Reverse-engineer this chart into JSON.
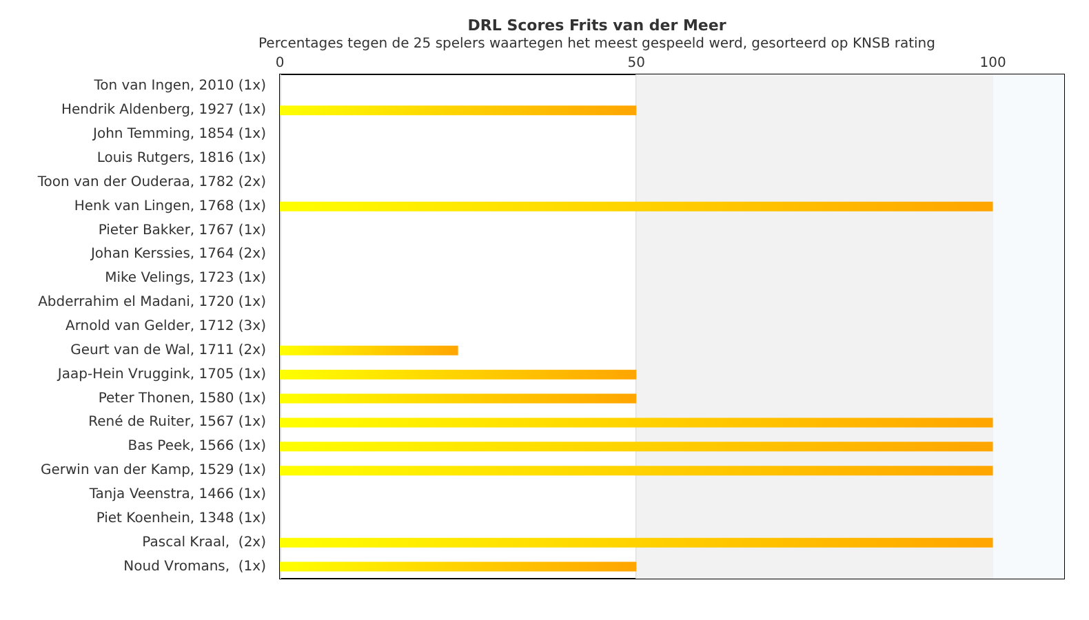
{
  "chart_data": {
    "type": "bar",
    "orientation": "horizontal",
    "title": "DRL Scores Frits van der Meer",
    "subtitle": "Percentages tegen de 25 spelers waartegen het meest gespeeld werd, gesorteerd op KNSB rating",
    "categories": [
      "Ton van Ingen, 2010 (1x)",
      "Hendrik Aldenberg, 1927 (1x)",
      "John Temming, 1854 (1x)",
      "Louis Rutgers, 1816 (1x)",
      "Toon van der Ouderaa, 1782 (2x)",
      "Henk van Lingen, 1768 (1x)",
      "Pieter Bakker, 1767 (1x)",
      "Johan Kerssies, 1764 (2x)",
      "Mike Velings, 1723 (1x)",
      "Abderrahim el Madani, 1720 (1x)",
      "Arnold van Gelder, 1712 (3x)",
      "Geurt van de Wal, 1711 (2x)",
      "Jaap-Hein Vruggink, 1705 (1x)",
      "Peter Thonen, 1580 (1x)",
      "René de Ruiter, 1567 (1x)",
      "Bas Peek, 1566 (1x)",
      "Gerwin van der Kamp, 1529 (1x)",
      "Tanja Veenstra, 1466 (1x)",
      "Piet Koenhein, 1348 (1x)",
      "Pascal Kraal,  (2x)",
      "Noud Vromans,  (1x)"
    ],
    "values": [
      0,
      50,
      0,
      0,
      0,
      100,
      0,
      0,
      0,
      0,
      0,
      25,
      50,
      50,
      100,
      100,
      100,
      0,
      0,
      100,
      50
    ],
    "color": "#ffa500",
    "xlim": [
      0,
      110
    ],
    "xticks": [
      0,
      50,
      100
    ],
    "grid": "x",
    "bands": [
      {
        "axis": "x",
        "from": 50,
        "to": 100,
        "color": "#f2f2f2"
      },
      {
        "axis": "x",
        "from": 100,
        "to": 110,
        "color": "#f7fafc"
      }
    ]
  }
}
